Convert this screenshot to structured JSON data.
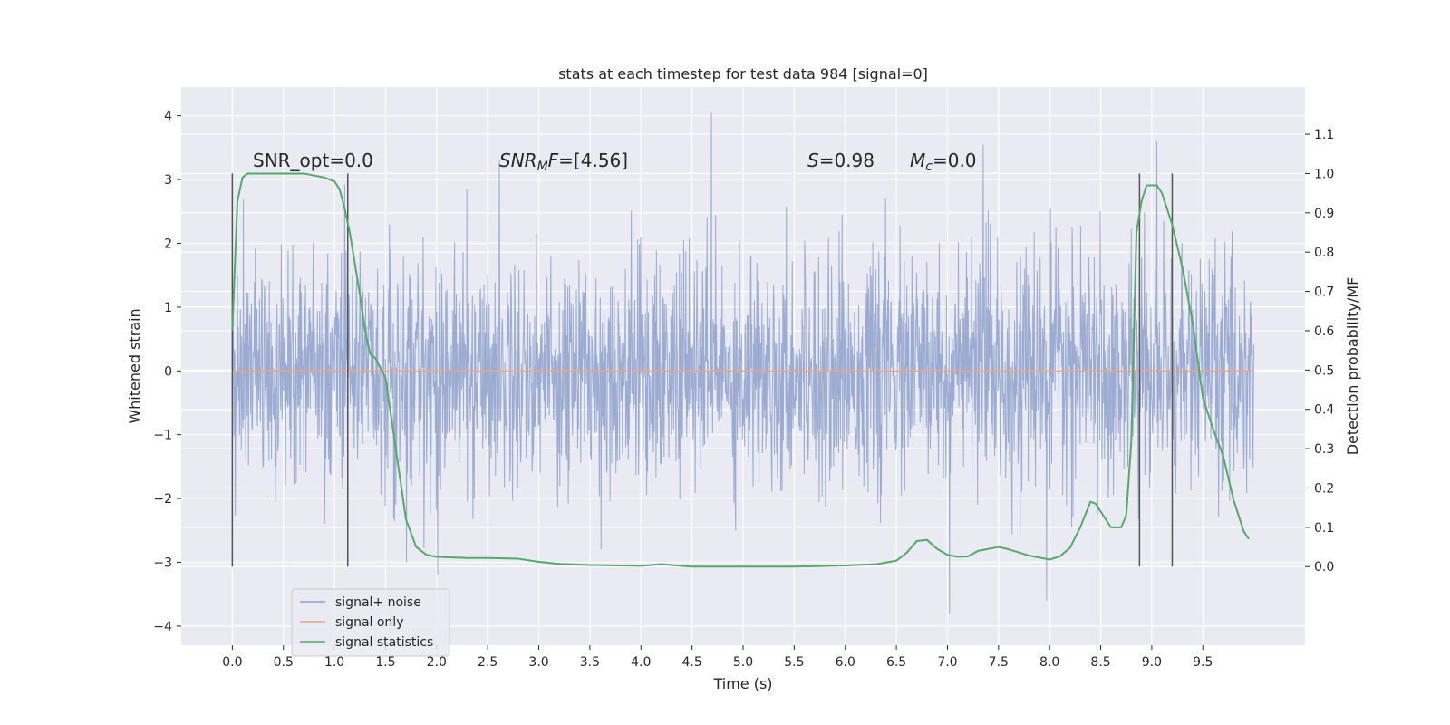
{
  "chart_data": {
    "type": "line",
    "title": "stats at each timestep for test data 984 [signal=0]",
    "xlabel": "Time (s)",
    "ylabel": "Whitened strain",
    "ylabel_right": "Detection probability/MF",
    "xlim": [
      -0.5,
      10.5
    ],
    "ylim": [
      -4.3,
      4.45
    ],
    "ylim_right": [
      -0.2,
      1.22
    ],
    "x_ticks": [
      0.0,
      0.5,
      1.0,
      1.5,
      2.0,
      2.5,
      3.0,
      3.5,
      4.0,
      4.5,
      5.0,
      5.5,
      6.0,
      6.5,
      7.0,
      7.5,
      8.0,
      8.5,
      9.0,
      9.5
    ],
    "x_tick_labels": [
      "0.0",
      "0.5",
      "1.0",
      "1.5",
      "2.0",
      "2.5",
      "3.0",
      "3.5",
      "4.0",
      "4.5",
      "5.0",
      "5.5",
      "6.0",
      "6.5",
      "7.0",
      "7.5",
      "8.0",
      "8.5",
      "9.0",
      "9.5"
    ],
    "y_ticks": [
      -4,
      -3,
      -2,
      -1,
      0,
      1,
      2,
      3,
      4
    ],
    "y_tick_labels": [
      "−4",
      "−3",
      "−2",
      "−1",
      "0",
      "1",
      "2",
      "3",
      "4"
    ],
    "y_right_ticks": [
      0.0,
      0.1,
      0.2,
      0.3,
      0.4,
      0.5,
      0.6,
      0.7,
      0.8,
      0.9,
      1.0,
      1.1
    ],
    "y_right_tick_labels": [
      "0.0",
      "0.1",
      "0.2",
      "0.3",
      "0.4",
      "0.5",
      "0.6",
      "0.7",
      "0.8",
      "0.9",
      "1.0",
      "1.1"
    ],
    "grid": true,
    "legend_position": "lower-left",
    "series": [
      {
        "name": "signal+ noise",
        "color": "#8da0cb",
        "axis": "left",
        "x_range": [
          0.0,
          10.0
        ],
        "std": 0.9,
        "min": -3.8,
        "max": 4.05,
        "peaks": [
          {
            "x": 4.69,
            "y": 4.05
          },
          {
            "x": 9.05,
            "y": 3.6
          },
          {
            "x": 7.35,
            "y": 3.55
          },
          {
            "x": 7.02,
            "y": -3.8
          },
          {
            "x": 7.97,
            "y": -3.6
          },
          {
            "x": 2.01,
            "y": -3.2
          },
          {
            "x": 1.13,
            "y": -3.0
          },
          {
            "x": 3.61,
            "y": -2.8
          }
        ]
      },
      {
        "name": "signal only",
        "color": "#e8a38c",
        "axis": "left",
        "x": [
          0.0,
          10.0
        ],
        "y": [
          0.0,
          0.0
        ]
      },
      {
        "name": "signal statistics",
        "color": "#55a868",
        "axis": "right",
        "x": [
          0.0,
          0.05,
          0.1,
          0.15,
          0.2,
          0.3,
          0.5,
          0.7,
          0.9,
          1.0,
          1.05,
          1.1,
          1.15,
          1.2,
          1.25,
          1.3,
          1.35,
          1.4,
          1.5,
          1.6,
          1.7,
          1.8,
          1.9,
          2.0,
          2.1,
          2.3,
          2.5,
          2.8,
          3.0,
          3.2,
          3.5,
          4.0,
          4.2,
          4.5,
          5.0,
          5.5,
          6.0,
          6.3,
          6.5,
          6.6,
          6.7,
          6.8,
          6.9,
          7.0,
          7.1,
          7.2,
          7.3,
          7.5,
          7.6,
          7.8,
          8.0,
          8.1,
          8.2,
          8.3,
          8.4,
          8.45,
          8.5,
          8.6,
          8.7,
          8.75,
          8.8,
          8.85,
          8.9,
          8.95,
          9.0,
          9.05,
          9.1,
          9.15,
          9.2,
          9.3,
          9.4,
          9.5,
          9.6,
          9.7,
          9.8,
          9.9,
          9.95
        ],
        "y": [
          0.6,
          0.93,
          0.99,
          1.0,
          1.0,
          1.0,
          1.0,
          1.0,
          0.99,
          0.98,
          0.96,
          0.91,
          0.85,
          0.77,
          0.69,
          0.6,
          0.54,
          0.53,
          0.48,
          0.3,
          0.12,
          0.05,
          0.03,
          0.025,
          0.024,
          0.022,
          0.022,
          0.02,
          0.012,
          0.007,
          0.004,
          0.002,
          0.006,
          0.0,
          0.0,
          0.0,
          0.003,
          0.006,
          0.015,
          0.035,
          0.065,
          0.068,
          0.045,
          0.03,
          0.025,
          0.026,
          0.04,
          0.05,
          0.044,
          0.028,
          0.018,
          0.026,
          0.048,
          0.1,
          0.165,
          0.16,
          0.14,
          0.1,
          0.1,
          0.13,
          0.32,
          0.85,
          0.93,
          0.97,
          0.97,
          0.97,
          0.95,
          0.91,
          0.87,
          0.76,
          0.62,
          0.43,
          0.35,
          0.28,
          0.17,
          0.09,
          0.07
        ]
      }
    ],
    "vlines": {
      "color": "#555555",
      "x": [
        0.0,
        1.13,
        8.88,
        9.2
      ],
      "ymin_right": 0.0,
      "ymax_right": 1.0
    },
    "annotations": {
      "snr_opt": "SNR_opt=0.0",
      "snr_mf_label": "SNR",
      "snr_mf_sub": "M",
      "snr_mf_tail": "F",
      "snr_mf_value": "=[4.56]",
      "s_label": "S",
      "s_value": "=0.98",
      "mc_label": "M",
      "mc_sub": "c",
      "mc_value": "=0.0"
    }
  }
}
